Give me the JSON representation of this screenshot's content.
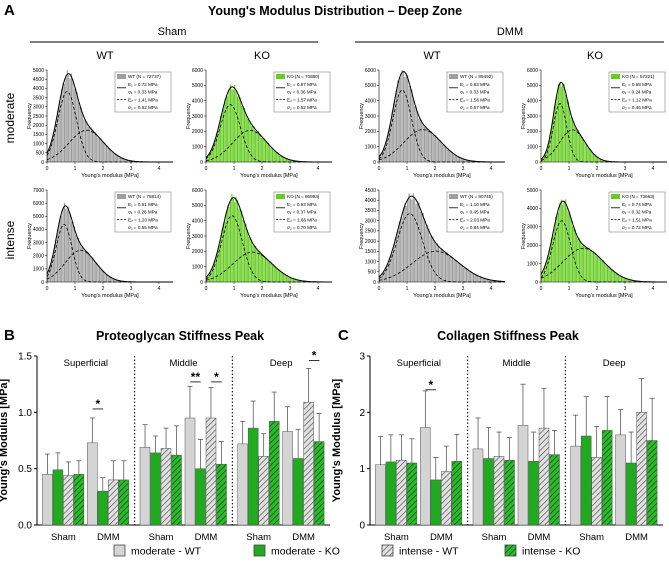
{
  "panel_A": {
    "letter": "A",
    "title": "Young's Modulus Distribution – Deep Zone",
    "groups": [
      "Sham",
      "DMM"
    ],
    "genotypes": [
      "WT",
      "KO",
      "WT",
      "KO"
    ],
    "rows": [
      "moderate",
      "intense"
    ],
    "xlabel": "Young's modulus [MPa]",
    "ylabel": "Frequency",
    "colors": {
      "WT": "#9e9e9e",
      "KO": "#66cc22"
    }
  },
  "chart_data": [
    {
      "type": "histogram",
      "panel": "A",
      "xlabel": "Young's modulus [MPa]",
      "ylabel": "Frequency",
      "xlim": [
        0,
        4.5
      ],
      "xticks": [
        0,
        1,
        2,
        3,
        4
      ],
      "legend_position": "top-right",
      "subplots": [
        {
          "row": "moderate",
          "group": "Sham",
          "genotype": "WT",
          "N": 72737,
          "E1": 0.72,
          "s1": 0.33,
          "E2": 1.41,
          "s2": 0.62,
          "ymax": 5000,
          "ytick": 500,
          "peak": 4800,
          "frac1": 0.55,
          "legend": [
            "WT (N = 72737)",
            "E₁ = 0.72 MPa",
            "σ₁ = 0.33 MPa",
            "E₂ = 1.41 MPa",
            "σ₂ = 0.62 MPa"
          ]
        },
        {
          "row": "moderate",
          "group": "Sham",
          "genotype": "KO",
          "N": 70880,
          "E1": 0.87,
          "s1": 0.36,
          "E2": 1.57,
          "s2": 0.62,
          "ymax": 6000,
          "ytick": 1000,
          "peak": 4900,
          "frac1": 0.5,
          "legend": [
            "KO (N = 70880)",
            "E₁ = 0.87 MPa",
            "σ₁ = 0.36 MPa",
            "E₂ = 1.57 MPa",
            "σ₂ = 0.62 MPa"
          ]
        },
        {
          "row": "moderate",
          "group": "DMM",
          "genotype": "WT",
          "N": 89492,
          "E1": 0.83,
          "s1": 0.33,
          "E2": 1.56,
          "s2": 0.67,
          "ymax": 6000,
          "ytick": 1000,
          "peak": 5900,
          "frac1": 0.55,
          "legend": [
            "WT (N = 89492)",
            "E₁ = 0.83 MPa",
            "σ₁ = 0.33 MPa",
            "E₂ = 1.56 MPa",
            "σ₂ = 0.67 MPa"
          ]
        },
        {
          "row": "moderate",
          "group": "DMM",
          "genotype": "KO",
          "N": 57221,
          "E1": 0.68,
          "s1": 0.24,
          "E2": 1.12,
          "s2": 0.46,
          "ymax": 6000,
          "ytick": 1000,
          "peak": 5200,
          "frac1": 0.5,
          "legend": [
            "KO (N = 57221)",
            "E₁ = 0.68 MPa",
            "σ₁ = 0.24 MPa",
            "E₂ = 1.12 MPa",
            "σ₂ = 0.46 MPa"
          ]
        },
        {
          "row": "intense",
          "group": "Sham",
          "genotype": "WT",
          "N": 75814,
          "E1": 0.61,
          "s1": 0.28,
          "E2": 1.2,
          "s2": 0.55,
          "ymax": 7000,
          "ytick": 1000,
          "peak": 5800,
          "frac1": 0.5,
          "legend": [
            "WT (N = 75814)",
            "E₁ = 0.61 MPa",
            "σ₁ = 0.28 MPa",
            "E₂ = 1.20 MPa",
            "σ₂ = 0.55 MPa"
          ]
        },
        {
          "row": "intense",
          "group": "Sham",
          "genotype": "KO",
          "N": 86993,
          "E1": 0.93,
          "s1": 0.37,
          "E2": 1.66,
          "s2": 0.7,
          "ymax": 6000,
          "ytick": 1000,
          "peak": 5500,
          "frac1": 0.55,
          "legend": [
            "KO (N = 86993)",
            "E₁ = 0.93 MPa",
            "σ₁ = 0.37 MPa",
            "E₂ = 1.66 MPa",
            "σ₂ = 0.70 MPa"
          ]
        },
        {
          "row": "intense",
          "group": "DMM",
          "genotype": "WT",
          "N": 80745,
          "E1": 1.1,
          "s1": 0.45,
          "E2": 2.03,
          "s2": 0.84,
          "ymax": 4500,
          "ytick": 500,
          "peak": 4200,
          "frac1": 0.55,
          "legend": [
            "WT (N = 80745)",
            "E₁ = 1.10 MPa",
            "σ₁ = 0.45 MPa",
            "E₂ = 2.03 MPa",
            "σ₂ = 0.84 MPa"
          ]
        },
        {
          "row": "intense",
          "group": "DMM",
          "genotype": "KO",
          "N": 73663,
          "E1": 0.74,
          "s1": 0.32,
          "E2": 1.51,
          "s2": 0.72,
          "ymax": 5000,
          "ytick": 1000,
          "peak": 4400,
          "frac1": 0.5,
          "legend": [
            "KO (N = 73663)",
            "E₁ = 0.74 MPa",
            "σ₁ = 0.32 MPa",
            "E₂ = 1.51 MPa",
            "σ₂ = 0.72 MPa"
          ]
        }
      ]
    },
    {
      "type": "bar",
      "panel": "B",
      "letter": "B",
      "title": "Proteoglycan Stiffness Peak",
      "ylabel": "Young's Modulus [MPa]",
      "ylim": [
        0,
        1.5
      ],
      "yticks": [
        0.0,
        0.5,
        1.0,
        1.5
      ],
      "tick_labels": [
        "0.0",
        "0.5",
        "1.0",
        "1.5"
      ],
      "zones": [
        "Superficial",
        "Middle",
        "Deep"
      ],
      "categories": [
        "Sham",
        "DMM"
      ],
      "series_order": [
        "moderate - WT",
        "moderate - KO",
        "intense - WT",
        "intense - KO"
      ],
      "values": {
        "Superficial": {
          "Sham": [
            0.45,
            0.49,
            0.44,
            0.45
          ],
          "DMM": [
            0.73,
            0.3,
            0.4,
            0.4
          ]
        },
        "Middle": {
          "Sham": [
            0.69,
            0.64,
            0.68,
            0.62
          ],
          "DMM": [
            0.95,
            0.5,
            0.95,
            0.54
          ]
        },
        "Deep": {
          "Sham": [
            0.72,
            0.86,
            0.61,
            0.92
          ],
          "DMM": [
            0.83,
            0.59,
            1.09,
            0.74
          ]
        }
      },
      "errors": {
        "Superficial": {
          "Sham": [
            0.18,
            0.15,
            0.12,
            0.12
          ],
          "DMM": [
            0.22,
            0.12,
            0.17,
            0.17
          ]
        },
        "Middle": {
          "Sham": [
            0.2,
            0.15,
            0.18,
            0.26
          ],
          "DMM": [
            0.28,
            0.26,
            0.27,
            0.2
          ]
        },
        "Deep": {
          "Sham": [
            0.2,
            0.24,
            0.2,
            0.26
          ],
          "DMM": [
            0.22,
            0.26,
            0.3,
            0.25
          ]
        }
      },
      "significance": [
        {
          "zone": "Superficial",
          "category": "DMM",
          "from": 0,
          "to": 1,
          "label": "*",
          "y": 1.03
        },
        {
          "zone": "Middle",
          "category": "DMM",
          "from": 0,
          "to": 1,
          "label": "**",
          "y": 1.27
        },
        {
          "zone": "Middle",
          "category": "DMM",
          "from": 2,
          "to": 3,
          "label": "*",
          "y": 1.27
        },
        {
          "zone": "Deep",
          "category": "DMM",
          "from": 2,
          "to": 3,
          "label": "*",
          "y": 1.46
        }
      ]
    },
    {
      "type": "bar",
      "panel": "C",
      "letter": "C",
      "title": "Collagen Stiffness Peak",
      "ylabel": "Young's Modulus [MPa]",
      "ylim": [
        0,
        3
      ],
      "yticks": [
        0,
        1,
        2,
        3
      ],
      "tick_labels": [
        "0",
        "1",
        "2",
        "3"
      ],
      "zones": [
        "Superficial",
        "Middle",
        "Deep"
      ],
      "categories": [
        "Sham",
        "DMM"
      ],
      "series_order": [
        "moderate - WT",
        "moderate - KO",
        "intense - WT",
        "intense - KO"
      ],
      "values": {
        "Superficial": {
          "Sham": [
            1.07,
            1.12,
            1.15,
            1.1
          ],
          "DMM": [
            1.73,
            0.8,
            0.95,
            1.13
          ]
        },
        "Middle": {
          "Sham": [
            1.35,
            1.18,
            1.22,
            1.15
          ],
          "DMM": [
            1.77,
            1.13,
            1.72,
            1.25
          ]
        },
        "Deep": {
          "Sham": [
            1.4,
            1.58,
            1.2,
            1.68
          ],
          "DMM": [
            1.6,
            1.1,
            2.0,
            1.5
          ]
        }
      },
      "errors": {
        "Superficial": {
          "Sham": [
            0.5,
            0.48,
            0.45,
            0.43
          ],
          "DMM": [
            0.65,
            0.4,
            0.45,
            0.48
          ]
        },
        "Middle": {
          "Sham": [
            0.55,
            0.55,
            0.43,
            0.4
          ],
          "DMM": [
            0.73,
            0.52,
            0.7,
            0.43
          ]
        },
        "Deep": {
          "Sham": [
            0.55,
            0.7,
            0.55,
            0.6
          ],
          "DMM": [
            0.45,
            0.55,
            0.6,
            0.75
          ]
        }
      },
      "significance": [
        {
          "zone": "Superficial",
          "category": "DMM",
          "from": 0,
          "to": 1,
          "label": "*",
          "y": 2.4
        }
      ]
    }
  ],
  "legend": [
    {
      "label": "moderate - WT",
      "fill": "#d4d4d4",
      "hatch": false
    },
    {
      "label": "moderate - KO",
      "fill": "#1faa1f",
      "hatch": false
    },
    {
      "label": "intense - WT",
      "fill": "#d4d4d4",
      "hatch": true
    },
    {
      "label": "intense - KO",
      "fill": "#1faa1f",
      "hatch": true
    }
  ]
}
